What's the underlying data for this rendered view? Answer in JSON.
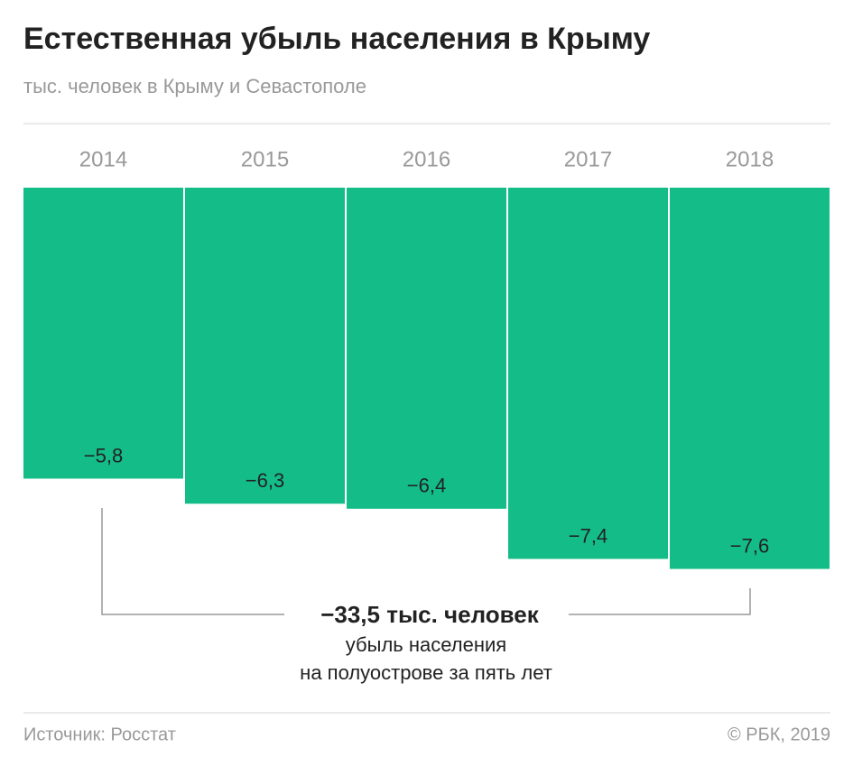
{
  "chart_data": {
    "type": "bar",
    "title": "Естественная убыль населения в Крыму",
    "subtitle": "тыс. человек в Крыму и Севастополе",
    "categories": [
      "2014",
      "2015",
      "2016",
      "2017",
      "2018"
    ],
    "values": [
      -5.8,
      -6.3,
      -6.4,
      -7.4,
      -7.6
    ],
    "value_labels": [
      "−5,8",
      "−6,3",
      "−6,4",
      "−7,4",
      "−7,6"
    ],
    "color": "#14bd87",
    "annotation": {
      "headline": "−33,5 тыс. человек",
      "line1": "убыль населения",
      "line2": "на полуострове за пять лет"
    },
    "source": "Источник: Росстат",
    "credit": "© РБК, 2019"
  }
}
